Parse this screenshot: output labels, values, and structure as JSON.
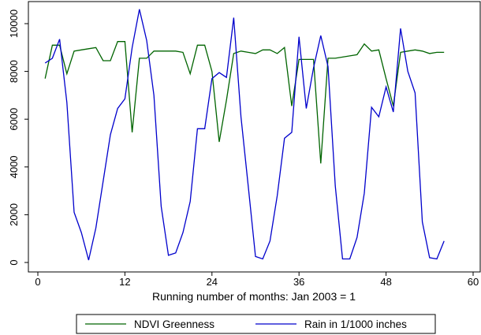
{
  "chart_data": {
    "type": "line",
    "xlabel": "Running number of months: Jan 2003 = 1",
    "ylabel": "",
    "xlim": [
      0,
      60
    ],
    "ylim": [
      -400,
      11000
    ],
    "xticks": [
      0,
      12,
      24,
      36,
      48,
      60
    ],
    "yticks": [
      0,
      2000,
      4000,
      6000,
      8000,
      10000
    ],
    "grid": false,
    "legend_position": "bottom",
    "series": [
      {
        "name": "NDVI Greenness",
        "color": "#006400",
        "x": [
          1,
          2,
          3,
          4,
          5,
          6,
          7,
          8,
          9,
          10,
          11,
          12,
          13,
          14,
          15,
          16,
          17,
          18,
          19,
          20,
          21,
          22,
          23,
          24,
          25,
          26,
          27,
          28,
          29,
          30,
          31,
          32,
          33,
          34,
          35,
          36,
          37,
          38,
          39,
          40,
          41,
          42,
          43,
          44,
          45,
          46,
          47,
          48,
          49,
          50,
          51,
          52,
          53,
          54,
          55,
          56
        ],
        "values": [
          7700,
          9100,
          9100,
          7900,
          8850,
          8900,
          8950,
          9000,
          8450,
          8450,
          9250,
          9250,
          5450,
          8550,
          8550,
          8850,
          8850,
          8850,
          8850,
          8800,
          7900,
          9100,
          9100,
          8000,
          5050,
          6800,
          8750,
          8850,
          8800,
          8750,
          8900,
          8900,
          8750,
          9000,
          6550,
          8500,
          8500,
          8500,
          4150,
          8550,
          8550,
          8600,
          8650,
          8700,
          9150,
          8850,
          8900,
          7700,
          6550,
          8800,
          8850,
          8900,
          8850,
          8750,
          8800,
          8800
        ]
      },
      {
        "name": "Rain in 1/1000 inches",
        "color": "#0000cc",
        "x": [
          1,
          2,
          3,
          4,
          5,
          6,
          7,
          8,
          9,
          10,
          11,
          12,
          13,
          14,
          15,
          16,
          17,
          18,
          19,
          20,
          21,
          22,
          23,
          24,
          25,
          26,
          27,
          28,
          29,
          30,
          31,
          32,
          33,
          34,
          35,
          36,
          37,
          38,
          39,
          40,
          41,
          42,
          43,
          44,
          45,
          46,
          47,
          48,
          49,
          50,
          51,
          52,
          53,
          54,
          55,
          56
        ],
        "values": [
          8350,
          8550,
          9350,
          6700,
          2100,
          1250,
          100,
          1450,
          3400,
          5350,
          6450,
          6850,
          9000,
          10600,
          9300,
          7000,
          2350,
          300,
          400,
          1250,
          2550,
          5600,
          5600,
          7700,
          7950,
          7750,
          10250,
          6100,
          3200,
          250,
          150,
          900,
          2800,
          5200,
          5450,
          9450,
          6450,
          8150,
          9500,
          8200,
          3200,
          150,
          150,
          1050,
          2900,
          6500,
          6100,
          7350,
          6300,
          9800,
          8000,
          7100,
          1700,
          200,
          150,
          900
        ]
      }
    ]
  }
}
